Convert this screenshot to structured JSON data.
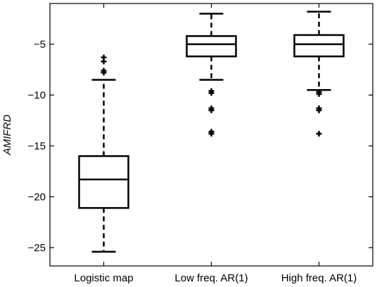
{
  "chart_data": {
    "type": "boxplot",
    "title": "",
    "xlabel": "",
    "ylabel": "AMIFRD",
    "categories": [
      "Logistic map",
      "Low freq. AR(1)",
      "High freq. AR(1)"
    ],
    "yticks": [
      -25,
      -20,
      -15,
      -10,
      -5
    ],
    "ylim": [
      -26.8,
      -1.0
    ],
    "grid": false,
    "boxes": [
      {
        "category": "Logistic map",
        "whisker_low": -25.4,
        "q1": -21.1,
        "median": -18.3,
        "q3": -16.0,
        "whisker_high": -8.5,
        "outliers": [
          -6.3,
          -6.7,
          -7.6,
          -7.8
        ]
      },
      {
        "category": "Low freq. AR(1)",
        "whisker_low": -8.5,
        "q1": -6.2,
        "median": -5.0,
        "q3": -4.2,
        "whisker_high": -2.0,
        "outliers": [
          -9.6,
          -9.8,
          -11.3,
          -11.5,
          -13.6,
          -13.8
        ]
      },
      {
        "category": "High freq. AR(1)",
        "whisker_low": -9.5,
        "q1": -6.2,
        "median": -5.0,
        "q3": -4.1,
        "whisker_high": -1.8,
        "outliers": [
          -9.7,
          -9.9,
          -11.3,
          -11.5,
          -13.8
        ]
      }
    ]
  }
}
